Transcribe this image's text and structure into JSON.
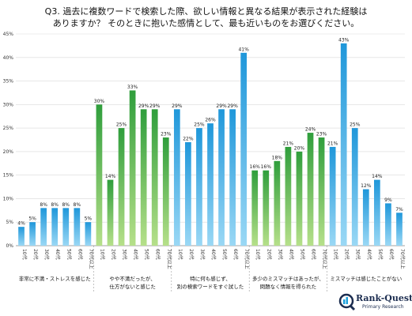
{
  "chart_data": {
    "type": "bar",
    "title_line1": "Q3. 過去に複数ワードで検索した際、欲しい情報と異なる結果が表示された経験は",
    "title_line2": "ありますか？ そのときに抱いた感情として、最も近いものをお選びください。",
    "ylim": [
      0,
      45
    ],
    "yticks": [
      "0%",
      "5%",
      "10%",
      "15%",
      "20%",
      "25%",
      "30%",
      "35%",
      "40%",
      "45%"
    ],
    "age_labels": [
      "10代",
      "20代",
      "30代",
      "40代",
      "50代",
      "60代",
      "70代以上"
    ],
    "groups": [
      {
        "label_lines": [
          "非常に不満・ストレスを感じた"
        ],
        "color": "blue",
        "values": [
          4,
          5,
          8,
          8,
          8,
          8,
          5
        ]
      },
      {
        "label_lines": [
          "やや不満だったが、",
          "仕方がないと感じた"
        ],
        "color": "green",
        "values": [
          30,
          14,
          25,
          33,
          29,
          29,
          23
        ]
      },
      {
        "label_lines": [
          "特に何も感じず、",
          "別の検索ワードをすぐ試した"
        ],
        "color": "blue",
        "values": [
          29,
          22,
          25,
          26,
          29,
          29,
          41
        ]
      },
      {
        "label_lines": [
          "多少のミスマッチはあったが、",
          "問題なく情報を得られた"
        ],
        "color": "green",
        "values": [
          16,
          16,
          18,
          21,
          20,
          24,
          23
        ]
      },
      {
        "label_lines": [
          "ミスマッチは感じたことがない"
        ],
        "color": "blue",
        "values": [
          21,
          43,
          25,
          12,
          14,
          9,
          7
        ]
      }
    ],
    "colors": {
      "blue_light": "#9ad8f5",
      "blue_dark": "#1f97da",
      "green_light": "#b6e08a",
      "green_dark": "#2f9e3c"
    },
    "grid": true
  },
  "logo": {
    "name": "Rank-Quest",
    "sub": "Primary Research"
  }
}
